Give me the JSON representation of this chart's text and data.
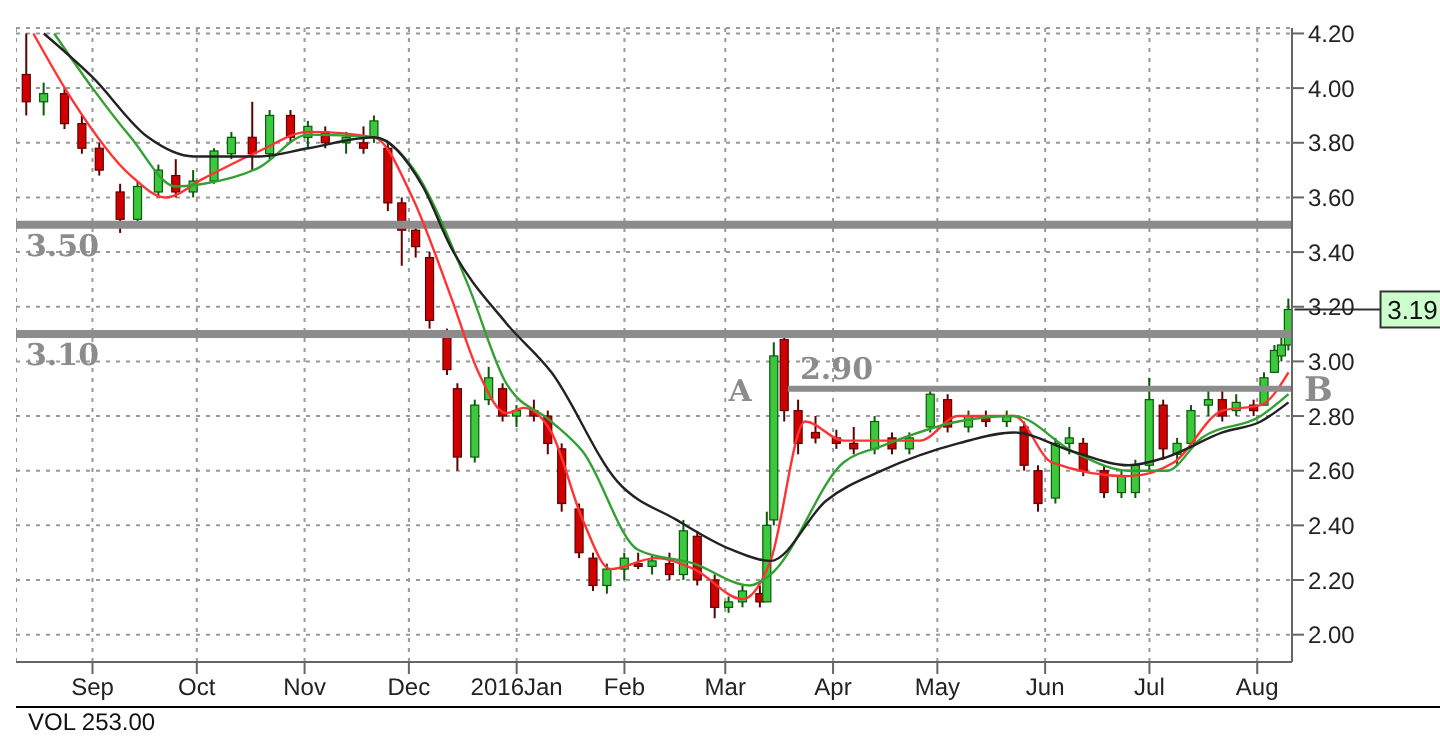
{
  "chart_data": {
    "type": "candlestick",
    "x": [
      "2015-08-13",
      "2015-08-18",
      "2015-08-24",
      "2015-08-29",
      "2015-09-03",
      "2015-09-09",
      "2015-09-14",
      "2015-09-20",
      "2015-09-25",
      "2015-09-30",
      "2015-10-06",
      "2015-10-11",
      "2015-10-17",
      "2015-10-22",
      "2015-10-28",
      "2015-11-02",
      "2015-11-07",
      "2015-11-13",
      "2015-11-18",
      "2015-11-21",
      "2015-11-25",
      "2015-11-29",
      "2015-12-03",
      "2015-12-07",
      "2015-12-12",
      "2015-12-15",
      "2015-12-20",
      "2015-12-24",
      "2015-12-28",
      "2016-01-01",
      "2016-01-06",
      "2016-01-10",
      "2016-01-14",
      "2016-01-19",
      "2016-01-23",
      "2016-01-27",
      "2016-02-01",
      "2016-02-05",
      "2016-02-09",
      "2016-02-14",
      "2016-02-18",
      "2016-02-22",
      "2016-02-27",
      "2016-03-02",
      "2016-03-06",
      "2016-03-11",
      "2016-03-13",
      "2016-03-15",
      "2016-03-18",
      "2016-03-22",
      "2016-03-27",
      "2016-04-02",
      "2016-04-07",
      "2016-04-13",
      "2016-04-18",
      "2016-04-23",
      "2016-04-29",
      "2016-05-04",
      "2016-05-10",
      "2016-05-15",
      "2016-05-21",
      "2016-05-26",
      "2016-05-30",
      "2016-06-04",
      "2016-06-08",
      "2016-06-12",
      "2016-06-18",
      "2016-06-23",
      "2016-06-27",
      "2016-07-01",
      "2016-07-05",
      "2016-07-09",
      "2016-07-13",
      "2016-07-18",
      "2016-07-22",
      "2016-07-26",
      "2016-07-31",
      "2016-08-03",
      "2016-08-06",
      "2016-08-08",
      "2016-08-10"
    ],
    "ohlc": [
      [
        4.05,
        4.2,
        3.9,
        3.95
      ],
      [
        3.95,
        4.02,
        3.9,
        3.98
      ],
      [
        3.98,
        4.0,
        3.85,
        3.87
      ],
      [
        3.87,
        3.9,
        3.76,
        3.78
      ],
      [
        3.78,
        3.8,
        3.68,
        3.7
      ],
      [
        3.62,
        3.65,
        3.47,
        3.52
      ],
      [
        3.52,
        3.66,
        3.5,
        3.64
      ],
      [
        3.62,
        3.72,
        3.6,
        3.7
      ],
      [
        3.68,
        3.74,
        3.6,
        3.62
      ],
      [
        3.62,
        3.7,
        3.6,
        3.66
      ],
      [
        3.66,
        3.78,
        3.65,
        3.77
      ],
      [
        3.76,
        3.84,
        3.74,
        3.82
      ],
      [
        3.82,
        3.95,
        3.7,
        3.76
      ],
      [
        3.76,
        3.92,
        3.74,
        3.9
      ],
      [
        3.9,
        3.92,
        3.8,
        3.82
      ],
      [
        3.82,
        3.88,
        3.78,
        3.86
      ],
      [
        3.84,
        3.86,
        3.78,
        3.8
      ],
      [
        3.8,
        3.84,
        3.76,
        3.82
      ],
      [
        3.8,
        3.86,
        3.76,
        3.78
      ],
      [
        3.82,
        3.9,
        3.8,
        3.88
      ],
      [
        3.78,
        3.8,
        3.55,
        3.58
      ],
      [
        3.58,
        3.6,
        3.35,
        3.48
      ],
      [
        3.48,
        3.5,
        3.38,
        3.42
      ],
      [
        3.38,
        3.4,
        3.12,
        3.15
      ],
      [
        3.1,
        3.12,
        2.95,
        2.97
      ],
      [
        2.9,
        2.92,
        2.6,
        2.65
      ],
      [
        2.65,
        2.86,
        2.63,
        2.84
      ],
      [
        2.86,
        2.98,
        2.84,
        2.94
      ],
      [
        2.9,
        2.92,
        2.78,
        2.8
      ],
      [
        2.8,
        2.84,
        2.76,
        2.82
      ],
      [
        2.82,
        2.86,
        2.78,
        2.8
      ],
      [
        2.8,
        2.82,
        2.66,
        2.7
      ],
      [
        2.68,
        2.7,
        2.45,
        2.48
      ],
      [
        2.46,
        2.48,
        2.28,
        2.3
      ],
      [
        2.28,
        2.3,
        2.16,
        2.18
      ],
      [
        2.18,
        2.26,
        2.15,
        2.24
      ],
      [
        2.24,
        2.3,
        2.2,
        2.28
      ],
      [
        2.26,
        2.3,
        2.24,
        2.25
      ],
      [
        2.25,
        2.29,
        2.22,
        2.27
      ],
      [
        2.26,
        2.3,
        2.2,
        2.22
      ],
      [
        2.22,
        2.42,
        2.2,
        2.38
      ],
      [
        2.36,
        2.38,
        2.18,
        2.2
      ],
      [
        2.2,
        2.22,
        2.06,
        2.1
      ],
      [
        2.1,
        2.14,
        2.08,
        2.12
      ],
      [
        2.12,
        2.18,
        2.1,
        2.16
      ],
      [
        2.15,
        2.18,
        2.1,
        2.12
      ],
      [
        2.12,
        2.45,
        2.12,
        2.4
      ],
      [
        2.42,
        3.07,
        2.4,
        3.02
      ],
      [
        3.08,
        3.1,
        2.78,
        2.82
      ],
      [
        2.82,
        2.86,
        2.66,
        2.7
      ],
      [
        2.74,
        2.8,
        2.7,
        2.72
      ],
      [
        2.72,
        2.75,
        2.68,
        2.7
      ],
      [
        2.7,
        2.76,
        2.66,
        2.68
      ],
      [
        2.68,
        2.8,
        2.66,
        2.78
      ],
      [
        2.72,
        2.74,
        2.66,
        2.68
      ],
      [
        2.68,
        2.74,
        2.66,
        2.72
      ],
      [
        2.76,
        2.9,
        2.74,
        2.88
      ],
      [
        2.86,
        2.88,
        2.74,
        2.76
      ],
      [
        2.76,
        2.82,
        2.74,
        2.8
      ],
      [
        2.8,
        2.82,
        2.76,
        2.78
      ],
      [
        2.78,
        2.82,
        2.76,
        2.8
      ],
      [
        2.76,
        2.78,
        2.6,
        2.62
      ],
      [
        2.6,
        2.62,
        2.45,
        2.48
      ],
      [
        2.5,
        2.72,
        2.48,
        2.7
      ],
      [
        2.7,
        2.76,
        2.66,
        2.72
      ],
      [
        2.7,
        2.72,
        2.58,
        2.6
      ],
      [
        2.6,
        2.62,
        2.5,
        2.52
      ],
      [
        2.52,
        2.6,
        2.5,
        2.58
      ],
      [
        2.52,
        2.64,
        2.5,
        2.62
      ],
      [
        2.62,
        2.94,
        2.6,
        2.86
      ],
      [
        2.84,
        2.86,
        2.64,
        2.68
      ],
      [
        2.66,
        2.72,
        2.62,
        2.7
      ],
      [
        2.7,
        2.84,
        2.68,
        2.82
      ],
      [
        2.84,
        2.9,
        2.8,
        2.86
      ],
      [
        2.86,
        2.9,
        2.78,
        2.8
      ],
      [
        2.82,
        2.88,
        2.8,
        2.85
      ],
      [
        2.84,
        2.86,
        2.8,
        2.82
      ],
      [
        2.84,
        2.96,
        2.84,
        2.94
      ],
      [
        2.96,
        3.06,
        2.96,
        3.04
      ],
      [
        3.02,
        3.1,
        3.0,
        3.06
      ],
      [
        3.06,
        3.23,
        3.04,
        3.19
      ]
    ],
    "series": [
      {
        "type": "line",
        "color": "#ff3333",
        "x": [
          "2015-08-15",
          "2015-08-26",
          "2015-09-12",
          "2015-09-22",
          "2015-10-03",
          "2015-10-19",
          "2015-11-02",
          "2015-11-21",
          "2015-12-02",
          "2015-12-13",
          "2015-12-21",
          "2015-12-29",
          "2016-01-03",
          "2016-01-11",
          "2016-01-20",
          "2016-01-28",
          "2016-02-10",
          "2016-02-21",
          "2016-03-06",
          "2016-03-14",
          "2016-03-24",
          "2016-04-04",
          "2016-04-26",
          "2016-05-07",
          "2016-05-23",
          "2016-06-03",
          "2016-06-25",
          "2016-07-08",
          "2016-07-22",
          "2016-08-02",
          "2016-08-10"
        ],
        "values": [
          4.2,
          3.96,
          3.68,
          3.6,
          3.67,
          3.77,
          3.84,
          3.82,
          3.6,
          3.24,
          2.96,
          2.81,
          2.83,
          2.74,
          2.42,
          2.24,
          2.28,
          2.24,
          2.13,
          2.27,
          2.78,
          2.71,
          2.71,
          2.8,
          2.8,
          2.63,
          2.58,
          2.63,
          2.82,
          2.84,
          2.96
        ]
      },
      {
        "type": "line",
        "color": "#33a033",
        "x": [
          "2015-08-21",
          "2015-09-01",
          "2015-09-12",
          "2015-09-25",
          "2015-10-03",
          "2015-10-19",
          "2015-11-02",
          "2015-11-21",
          "2015-12-02",
          "2015-12-18",
          "2015-12-29",
          "2016-01-11",
          "2016-01-20",
          "2016-02-05",
          "2016-02-21",
          "2016-03-08",
          "2016-03-14",
          "2016-04-04",
          "2016-04-15",
          "2016-05-07",
          "2016-05-23",
          "2016-06-09",
          "2016-06-25",
          "2016-07-06",
          "2016-07-16",
          "2016-08-02",
          "2016-08-10"
        ],
        "values": [
          4.2,
          4.0,
          3.82,
          3.64,
          3.65,
          3.71,
          3.83,
          3.82,
          3.71,
          3.28,
          2.92,
          2.78,
          2.67,
          2.31,
          2.26,
          2.18,
          2.22,
          2.63,
          2.69,
          2.78,
          2.8,
          2.67,
          2.6,
          2.6,
          2.72,
          2.8,
          2.88
        ]
      },
      {
        "type": "line",
        "color": "#222222",
        "x": [
          "2015-08-18",
          "2015-09-01",
          "2015-09-17",
          "2015-09-30",
          "2015-10-19",
          "2015-11-02",
          "2015-11-21",
          "2015-12-05",
          "2015-12-13",
          "2015-12-29",
          "2016-01-11",
          "2016-01-30",
          "2016-02-16",
          "2016-03-03",
          "2016-03-14",
          "2016-03-30",
          "2016-04-15",
          "2016-05-07",
          "2016-05-23",
          "2016-06-09",
          "2016-06-25",
          "2016-07-06",
          "2016-07-22",
          "2016-08-02",
          "2016-08-10"
        ],
        "values": [
          4.2,
          4.04,
          3.82,
          3.75,
          3.75,
          3.78,
          3.82,
          3.64,
          3.42,
          3.14,
          2.96,
          2.56,
          2.42,
          2.31,
          2.27,
          2.49,
          2.6,
          2.7,
          2.74,
          2.67,
          2.62,
          2.65,
          2.74,
          2.78,
          2.85
        ]
      },
      {
        "type": "line",
        "color": "#8c8c8c",
        "x": [
          "2016-03-19",
          "2016-08-11"
        ],
        "values": [
          2.9,
          2.9
        ]
      }
    ],
    "xlim": [
      "2015-08-10",
      "2016-08-11"
    ],
    "ylim": [
      1.9,
      4.22
    ],
    "xticks": [
      {
        "value": "2015-09-01",
        "label": "Sep"
      },
      {
        "value": "2015-10-01",
        "label": "Oct"
      },
      {
        "value": "2015-11-01",
        "label": "Nov"
      },
      {
        "value": "2015-12-01",
        "label": "Dec"
      },
      {
        "value": "2016-01-01",
        "label": "2016Jan"
      },
      {
        "value": "2016-02-01",
        "label": "Feb"
      },
      {
        "value": "2016-03-01",
        "label": "Mar"
      },
      {
        "value": "2016-04-01",
        "label": "Apr"
      },
      {
        "value": "2016-05-01",
        "label": "May"
      },
      {
        "value": "2016-06-01",
        "label": "Jun"
      },
      {
        "value": "2016-07-01",
        "label": "Jul"
      },
      {
        "value": "2016-08-01",
        "label": "Aug"
      }
    ],
    "yticks": [
      {
        "value": 2,
        "label": "2.00"
      },
      {
        "value": 2.2,
        "label": "2.20"
      },
      {
        "value": 2.4,
        "label": "2.40"
      },
      {
        "value": 2.6,
        "label": "2.60"
      },
      {
        "value": 2.8,
        "label": "2.80"
      },
      {
        "value": 3,
        "label": "3.00"
      },
      {
        "value": 3.2,
        "label": "3.20"
      },
      {
        "value": 3.4,
        "label": "3.40"
      },
      {
        "value": 3.6,
        "label": "3.60"
      },
      {
        "value": 3.8,
        "label": "3.80"
      },
      {
        "value": 4,
        "label": "4.00"
      },
      {
        "value": 4.2,
        "label": "4.20"
      }
    ],
    "grid": true,
    "ref_lines": [
      {
        "axis": "y",
        "value": 3.5,
        "label": "3.50",
        "color": "#8c8c8c"
      },
      {
        "axis": "y",
        "value": 3.1,
        "label": "3.10",
        "color": "#8c8c8c"
      }
    ],
    "annotations": [
      {
        "text": "2.90",
        "x": "2016-04-02",
        "y": 2.9
      },
      {
        "text": "A",
        "x": "2016-03-19",
        "y": 2.9
      },
      {
        "text": "B",
        "x": "2016-08-11",
        "y": 2.9
      },
      {
        "text": "3.19",
        "x": "2016-08-10",
        "y": 3.19
      },
      "VOL 253.00"
    ]
  }
}
